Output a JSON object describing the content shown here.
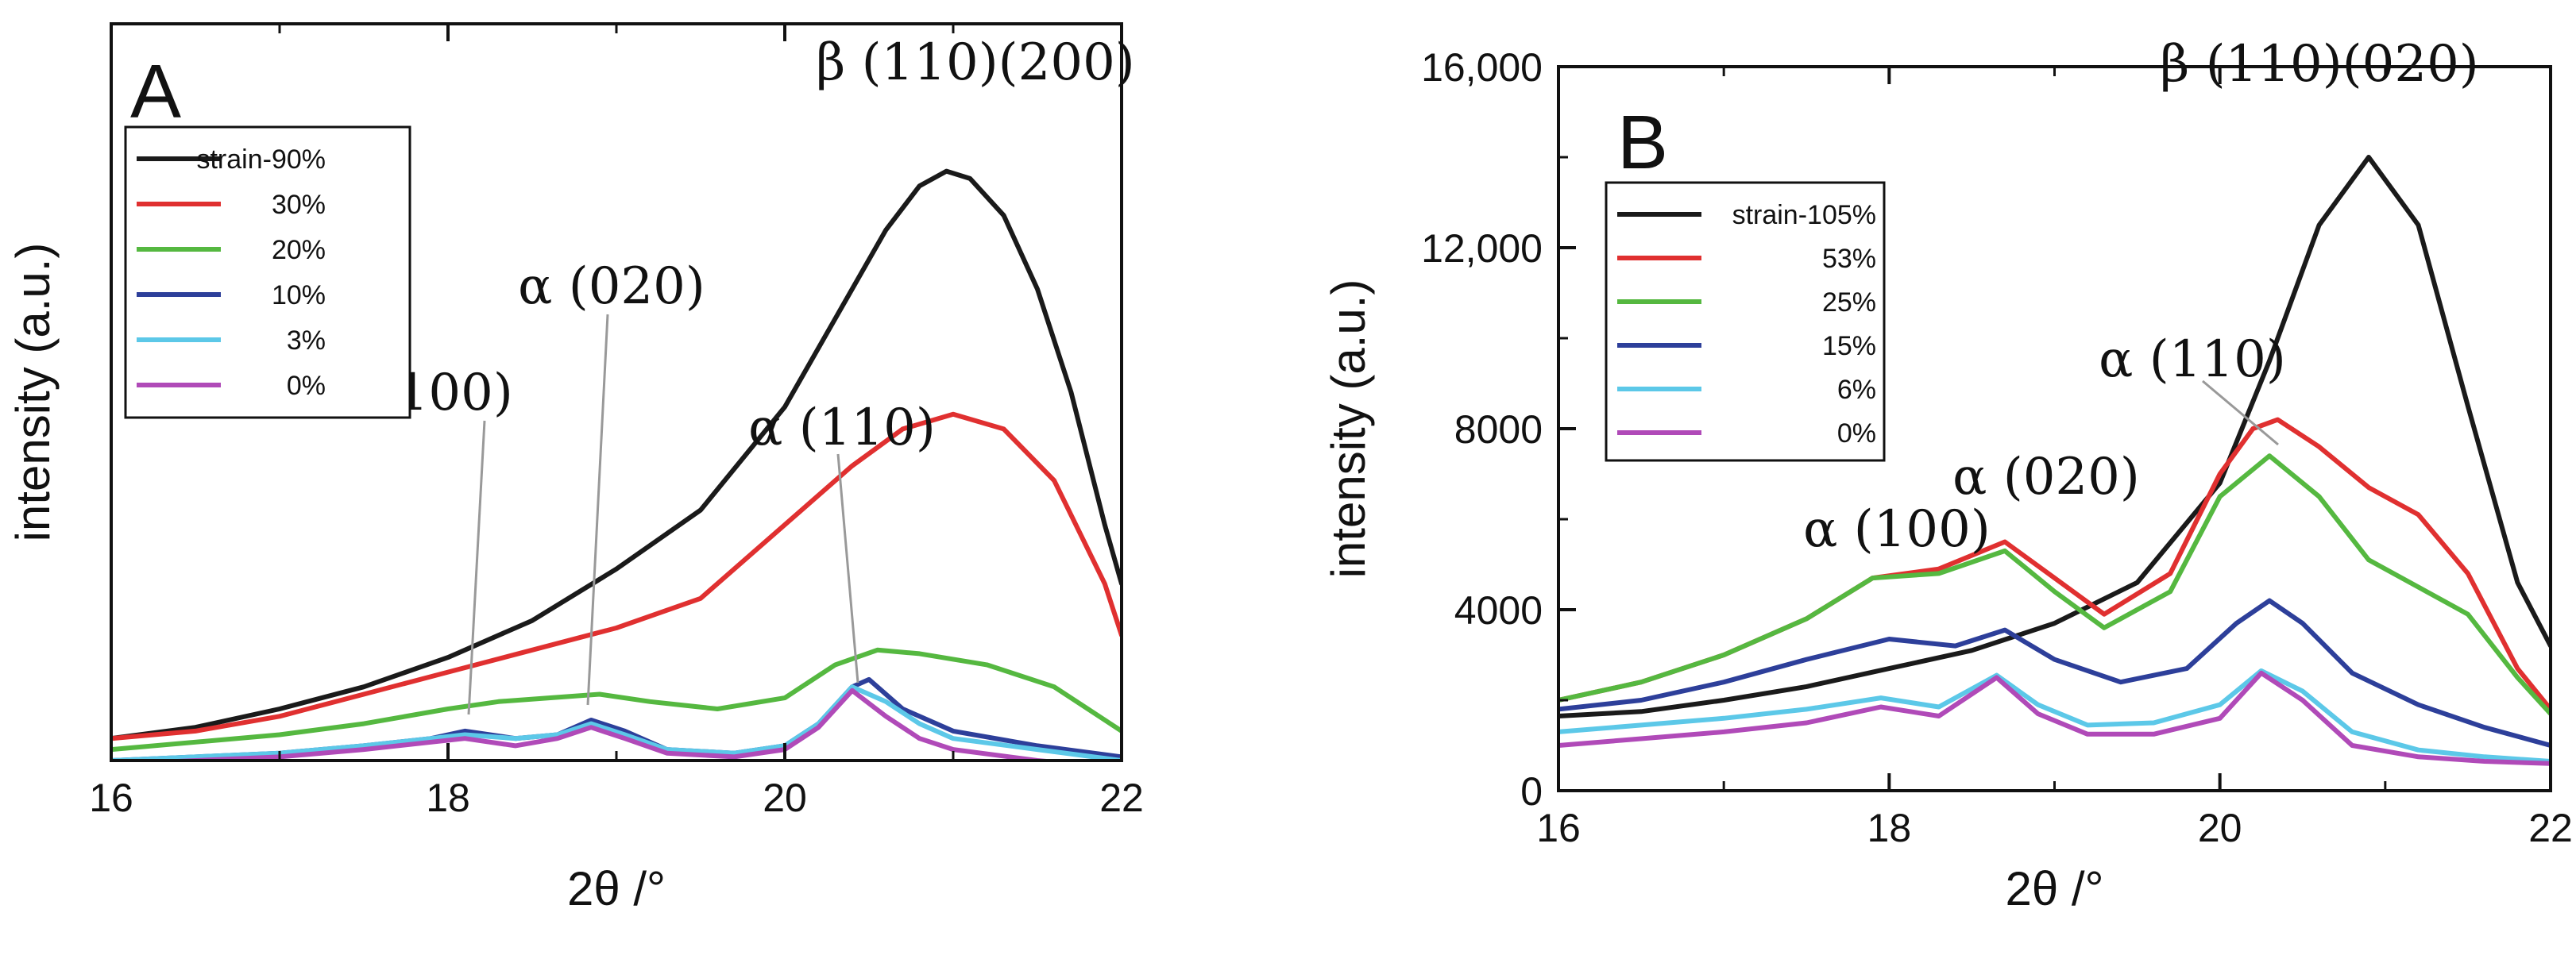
{
  "chart_data": [
    {
      "type": "line",
      "panel_label": "A",
      "xlabel": "2θ /°",
      "ylabel": "intensity (a.u.)",
      "xlim": [
        16,
        22
      ],
      "ylim": [
        0,
        100
      ],
      "xticks": [
        "16",
        "18",
        "20",
        "22"
      ],
      "yticks": [],
      "legend_position": "top-left",
      "annotations": [
        {
          "text": "β (110)(200)",
          "x": 20.96,
          "y": 98
        },
        {
          "text": "α (020)",
          "x": 18.87,
          "y": 40
        },
        {
          "text": "α (100)",
          "x": 18.1,
          "y": 28
        },
        {
          "text": "α (110)",
          "x": 20.45,
          "y": 23
        }
      ],
      "series": [
        {
          "name": "strain-90%",
          "color": "#1a1a1a",
          "x": [
            16,
            16.5,
            17,
            17.5,
            18,
            18.5,
            19,
            19.5,
            20,
            20.3,
            20.6,
            20.8,
            20.96,
            21.1,
            21.3,
            21.5,
            21.7,
            21.9,
            22
          ],
          "y": [
            3,
            4.5,
            7,
            10,
            14,
            19,
            26,
            34,
            48,
            60,
            72,
            78,
            80,
            79,
            74,
            64,
            50,
            32,
            24
          ]
        },
        {
          "name": "30%",
          "color": "#e03030",
          "x": [
            16,
            16.5,
            17,
            17.5,
            18,
            18.5,
            19,
            19.5,
            20,
            20.4,
            20.7,
            21.0,
            21.3,
            21.6,
            21.9,
            22
          ],
          "y": [
            3,
            4,
            6,
            9,
            12,
            15,
            18,
            22,
            32,
            40,
            45,
            47,
            45,
            38,
            24,
            17
          ]
        },
        {
          "name": "20%",
          "color": "#55b840",
          "x": [
            16,
            17,
            17.5,
            18,
            18.3,
            18.6,
            18.9,
            19.2,
            19.6,
            20.0,
            20.3,
            20.55,
            20.8,
            21.2,
            21.6,
            22
          ],
          "y": [
            1.5,
            3.5,
            5,
            7,
            8,
            8.5,
            9,
            8,
            7,
            8.5,
            13,
            15,
            14.5,
            13,
            10,
            4
          ]
        },
        {
          "name": "10%",
          "color": "#2d3f9a",
          "x": [
            16,
            17,
            17.5,
            17.9,
            18.1,
            18.4,
            18.65,
            18.85,
            19.05,
            19.3,
            19.7,
            20.0,
            20.2,
            20.4,
            20.5,
            20.7,
            21,
            21.5,
            22
          ],
          "y": [
            0,
            1,
            2,
            3,
            4,
            3,
            3.5,
            5.5,
            4,
            1.5,
            1,
            2,
            5,
            10,
            11,
            7,
            4,
            2,
            0.5
          ]
        },
        {
          "name": "3%",
          "color": "#5cc8e8",
          "x": [
            16,
            17,
            17.5,
            17.9,
            18.1,
            18.4,
            18.65,
            18.85,
            19.05,
            19.3,
            19.7,
            20.0,
            20.2,
            20.4,
            20.6,
            20.8,
            21,
            21.5,
            22
          ],
          "y": [
            0,
            1,
            2,
            3,
            3.5,
            3,
            3.5,
            5,
            3.5,
            1.5,
            1,
            2,
            5,
            10,
            8,
            5,
            3,
            1.5,
            0
          ]
        },
        {
          "name": "0%",
          "color": "#b04ab8",
          "x": [
            16,
            17,
            17.5,
            17.9,
            18.1,
            18.4,
            18.65,
            18.85,
            19.05,
            19.3,
            19.7,
            20.0,
            20.2,
            20.4,
            20.6,
            20.8,
            21,
            21.5,
            22
          ],
          "y": [
            -0.5,
            0.5,
            1.5,
            2.5,
            3,
            2,
            3,
            4.5,
            3,
            1,
            0.5,
            1.5,
            4.5,
            9.5,
            6,
            3,
            1.5,
            0,
            -1
          ]
        }
      ]
    },
    {
      "type": "line",
      "panel_label": "B",
      "xlabel": "2θ /°",
      "ylabel": "intensity (a.u.)",
      "xlim": [
        16,
        22
      ],
      "ylim": [
        0,
        16000
      ],
      "xticks": [
        "16",
        "18",
        "20",
        "22"
      ],
      "yticks": [
        "0",
        "4000",
        "8000",
        "12,000",
        "16,000"
      ],
      "ytick_values": [
        0,
        4000,
        8000,
        12000,
        16000
      ],
      "legend_position": "top-left",
      "annotations": [
        {
          "text": "β (110)(020)",
          "x": 20.9,
          "y": 15200
        },
        {
          "text": "α (110)",
          "x": 20.0,
          "y": 9200
        },
        {
          "text": "α (020)",
          "x": 19.0,
          "y": 6300
        },
        {
          "text": "α (100)",
          "x": 18.1,
          "y": 5400
        }
      ],
      "series": [
        {
          "name": "strain-105%",
          "color": "#1a1a1a",
          "x": [
            16,
            16.5,
            17,
            17.5,
            18,
            18.5,
            19,
            19.5,
            20,
            20.3,
            20.6,
            20.9,
            21.2,
            21.5,
            21.8,
            22
          ],
          "y": [
            1650,
            1750,
            2000,
            2300,
            2700,
            3100,
            3700,
            4600,
            6800,
            9500,
            12500,
            14000,
            12500,
            8500,
            4600,
            3200
          ]
        },
        {
          "name": "53%",
          "color": "#e03030",
          "x": [
            16,
            16.5,
            17,
            17.5,
            17.9,
            18.3,
            18.7,
            19.0,
            19.3,
            19.7,
            20.0,
            20.2,
            20.35,
            20.6,
            20.9,
            21.2,
            21.5,
            21.8,
            22
          ],
          "y": [
            2000,
            2400,
            3000,
            3800,
            4700,
            4900,
            5500,
            4700,
            3900,
            4800,
            7000,
            8000,
            8200,
            7600,
            6700,
            6100,
            4800,
            2700,
            1800
          ]
        },
        {
          "name": "25%",
          "color": "#55b840",
          "x": [
            16,
            16.5,
            17,
            17.5,
            17.9,
            18.3,
            18.7,
            19.0,
            19.3,
            19.7,
            20.0,
            20.3,
            20.6,
            20.9,
            21.2,
            21.5,
            21.8,
            22
          ],
          "y": [
            2000,
            2400,
            3000,
            3800,
            4700,
            4800,
            5300,
            4400,
            3600,
            4400,
            6500,
            7400,
            6500,
            5100,
            4500,
            3900,
            2500,
            1700
          ]
        },
        {
          "name": "15%",
          "color": "#2d3f9a",
          "x": [
            16,
            16.5,
            17,
            17.5,
            18,
            18.4,
            18.7,
            19.0,
            19.4,
            19.8,
            20.1,
            20.3,
            20.5,
            20.8,
            21.2,
            21.6,
            22
          ],
          "y": [
            1800,
            2000,
            2400,
            2900,
            3350,
            3200,
            3550,
            2900,
            2400,
            2700,
            3700,
            4200,
            3700,
            2600,
            1900,
            1400,
            1000
          ]
        },
        {
          "name": "6%",
          "color": "#5cc8e8",
          "x": [
            16,
            16.5,
            17,
            17.5,
            17.95,
            18.3,
            18.65,
            18.9,
            19.2,
            19.6,
            20.0,
            20.25,
            20.5,
            20.8,
            21.2,
            21.6,
            22
          ],
          "y": [
            1300,
            1450,
            1600,
            1800,
            2050,
            1850,
            2550,
            1900,
            1450,
            1500,
            1900,
            2650,
            2200,
            1300,
            900,
            750,
            650
          ]
        },
        {
          "name": "0%",
          "color": "#b04ab8",
          "x": [
            16,
            16.5,
            17,
            17.5,
            17.95,
            18.3,
            18.65,
            18.9,
            19.2,
            19.6,
            20.0,
            20.25,
            20.5,
            20.8,
            21.2,
            21.6,
            22
          ],
          "y": [
            1000,
            1150,
            1300,
            1500,
            1850,
            1650,
            2500,
            1700,
            1250,
            1250,
            1600,
            2600,
            2000,
            1000,
            750,
            650,
            600
          ]
        }
      ]
    }
  ]
}
